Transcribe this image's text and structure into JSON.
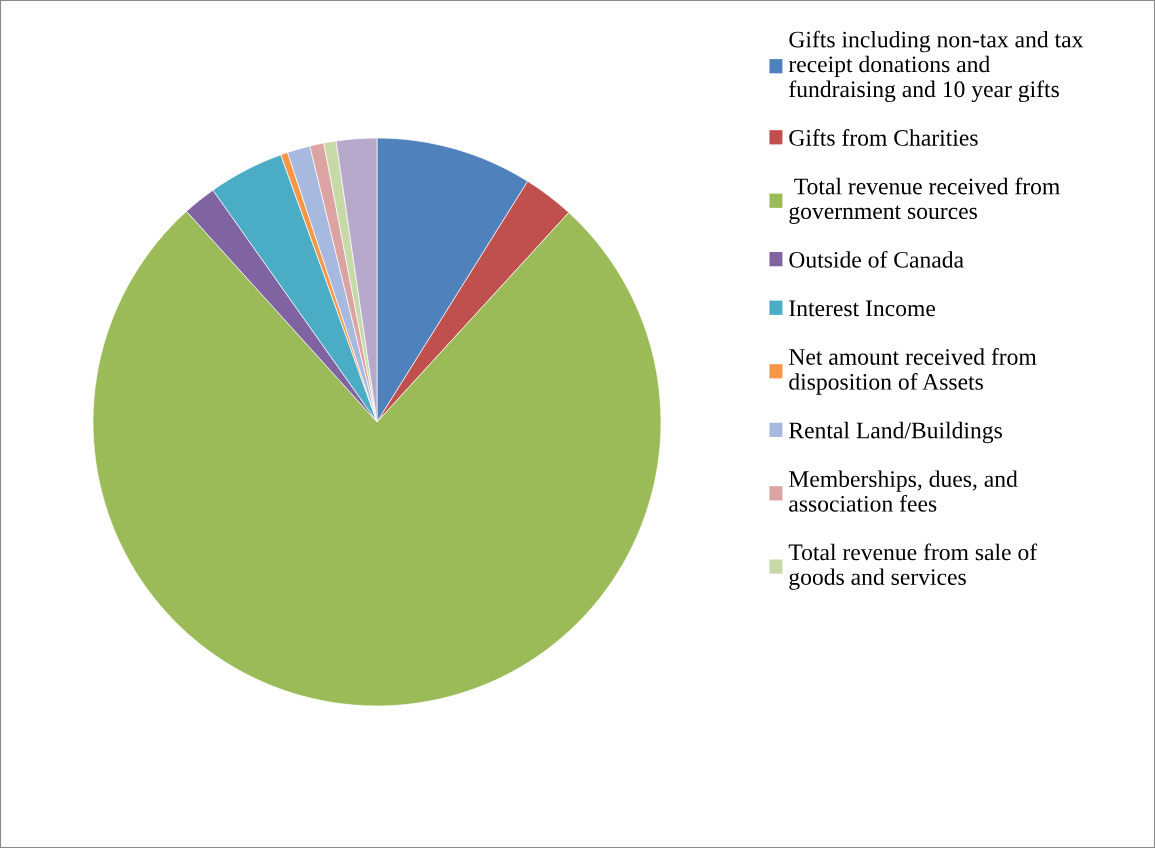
{
  "chart_data": {
    "type": "pie",
    "categories": [
      "Gifts including non-tax and tax\nreceipt donations and\nfundraising and 10 year gifts",
      "Gifts from Charities",
      " Total revenue received from\ngovernment sources",
      "Outside of Canada",
      "Interest Income",
      "Net amount received from\ndisposition of Assets",
      "Rental Land/Buildings",
      "Memberships, dues, and\nassociation fees",
      "Total revenue from sale of\ngoods and services",
      null
    ],
    "values": [
      8.9,
      2.9,
      76.5,
      1.9,
      4.3,
      0.4,
      1.3,
      0.8,
      0.7,
      2.3
    ],
    "colors": [
      "#4f81bd",
      "#c0504d",
      "#9bbb59",
      "#8064a2",
      "#4bacc6",
      "#f79646",
      "#a7b9de",
      "#dca3a3",
      "#c6d9a7",
      "#b7a9cc"
    ],
    "legend": "right"
  }
}
